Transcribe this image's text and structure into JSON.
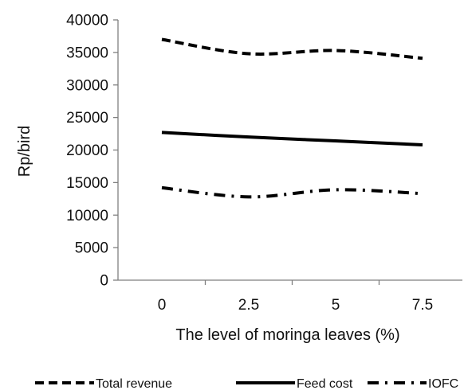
{
  "chart_data": {
    "type": "line",
    "xlabel": "The level of moringa leaves (%)",
    "ylabel": "Rp/bird",
    "x": [
      0,
      2.5,
      5,
      7.5
    ],
    "x_tick_labels": [
      "0",
      "2.5",
      "5",
      "7.5"
    ],
    "ylim": [
      0,
      40000
    ],
    "y_ticks": [
      0,
      5000,
      10000,
      15000,
      20000,
      25000,
      30000,
      35000,
      40000
    ],
    "grid": false,
    "legend_position": "bottom",
    "series": [
      {
        "name": "Total revenue",
        "style": "dashed",
        "values": [
          37000,
          34800,
          35300,
          34100
        ]
      },
      {
        "name": "Feed cost",
        "style": "solid",
        "values": [
          22700,
          22000,
          21400,
          20800
        ]
      },
      {
        "name": "IOFC",
        "style": "dashdot",
        "values": [
          14200,
          12800,
          13900,
          13300
        ]
      }
    ],
    "line_color": "#000000"
  }
}
